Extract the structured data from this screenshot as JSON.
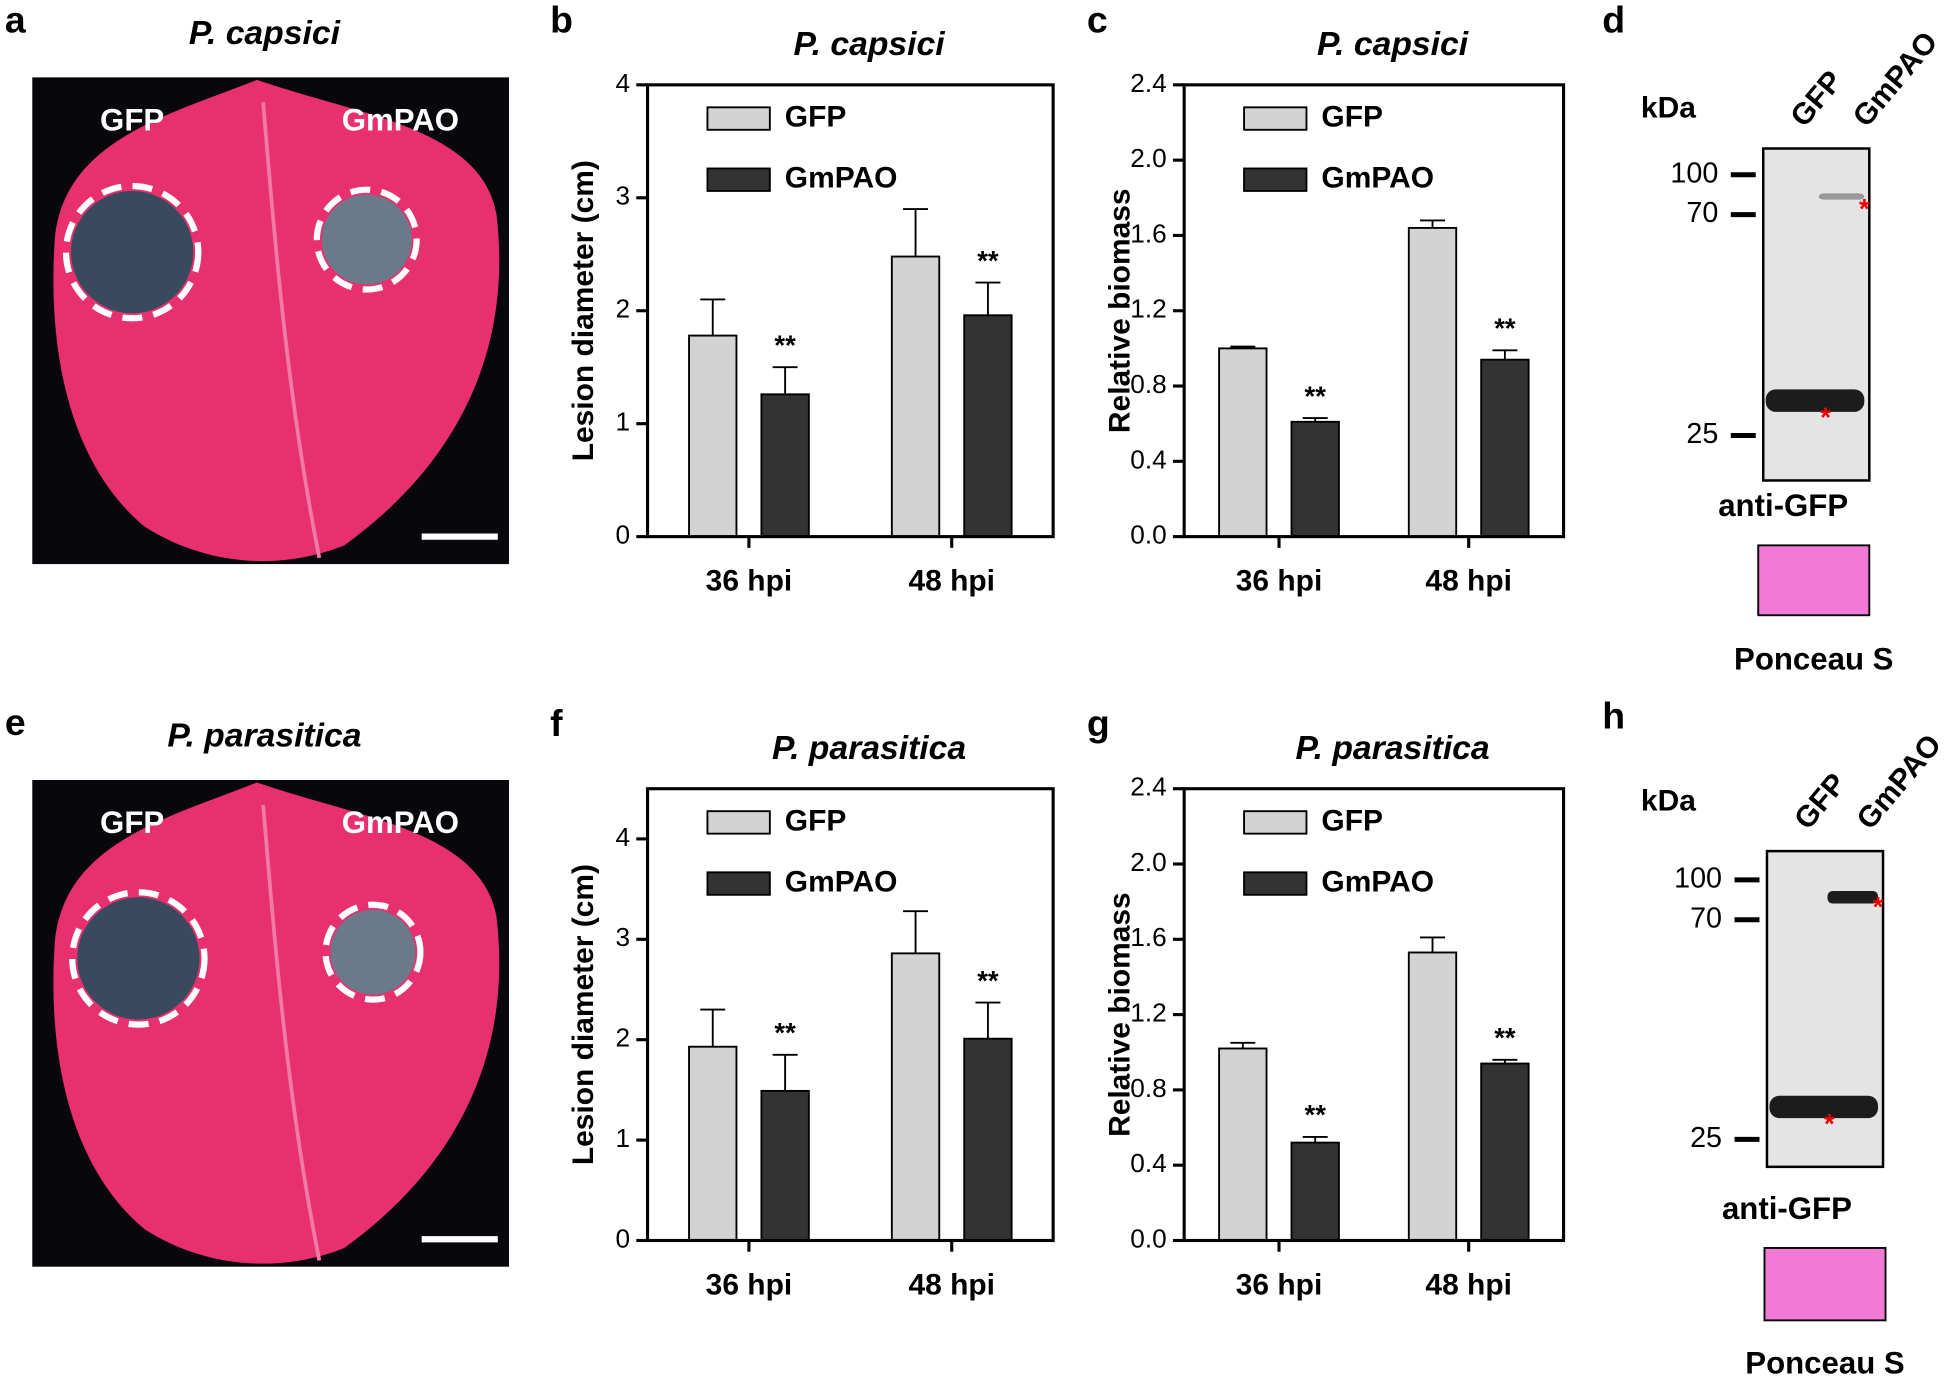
{
  "chart_data": [
    {
      "type": "bar",
      "label": "b",
      "title": "P. capsici",
      "ylabel": "Lesion diameter (cm)",
      "categories": [
        "36 hpi",
        "48 hpi"
      ],
      "series": [
        {
          "name": "GFP",
          "color": "#d3d3d3",
          "values": [
            1.78,
            2.48
          ],
          "errors": [
            0.32,
            0.42
          ]
        },
        {
          "name": "GmPAO",
          "color": "#333333",
          "values": [
            1.26,
            1.96
          ],
          "errors": [
            0.24,
            0.29
          ],
          "annotations": [
            "**",
            "**"
          ]
        }
      ],
      "ylim": [
        0,
        4
      ],
      "yticks": [
        0,
        1,
        2,
        3,
        4
      ]
    },
    {
      "type": "bar",
      "label": "c",
      "title": "P. capsici",
      "ylabel": "Relative biomass",
      "categories": [
        "36 hpi",
        "48 hpi"
      ],
      "series": [
        {
          "name": "GFP",
          "color": "#d3d3d3",
          "values": [
            1.0,
            1.64
          ],
          "errors": [
            0.01,
            0.04
          ]
        },
        {
          "name": "GmPAO",
          "color": "#333333",
          "values": [
            0.61,
            0.94
          ],
          "errors": [
            0.02,
            0.05
          ],
          "annotations": [
            "**",
            "**"
          ]
        }
      ],
      "ylim": [
        0,
        2.4
      ],
      "yticks": [
        {
          "value": 0,
          "label": "0.0"
        },
        0.4,
        0.8,
        1.2,
        1.6,
        {
          "value": 2,
          "label": "2.0"
        },
        2.4
      ]
    },
    {
      "type": "bar",
      "label": "f",
      "title": "P. parasitica",
      "ylabel": "Lesion diameter (cm)",
      "categories": [
        "36 hpi",
        "48 hpi"
      ],
      "series": [
        {
          "name": "GFP",
          "color": "#d3d3d3",
          "values": [
            1.93,
            2.86
          ],
          "errors": [
            0.37,
            0.42
          ]
        },
        {
          "name": "GmPAO",
          "color": "#333333",
          "values": [
            1.49,
            2.01
          ],
          "errors": [
            0.36,
            0.36
          ],
          "annotations": [
            "**",
            "**"
          ]
        }
      ],
      "ylim": [
        0,
        4.5
      ],
      "yticks": [
        0,
        1,
        2,
        3,
        4
      ]
    },
    {
      "type": "bar",
      "label": "g",
      "title": "P. parasitica",
      "ylabel": "Relative biomass",
      "categories": [
        "36 hpi",
        "48 hpi"
      ],
      "series": [
        {
          "name": "GFP",
          "color": "#d3d3d3",
          "values": [
            1.02,
            1.53
          ],
          "errors": [
            0.03,
            0.08
          ]
        },
        {
          "name": "GmPAO",
          "color": "#333333",
          "values": [
            0.52,
            0.94
          ],
          "errors": [
            0.03,
            0.02
          ],
          "annotations": [
            "**",
            "**"
          ]
        }
      ],
      "ylim": [
        0,
        2.4
      ],
      "yticks": [
        {
          "value": 0,
          "label": "0.0"
        },
        0.4,
        0.8,
        1.2,
        1.6,
        {
          "value": 2,
          "label": "2.0"
        },
        2.4
      ]
    }
  ],
  "photos": [
    {
      "label": "a",
      "title": "P. capsici",
      "spots": [
        "GFP",
        "GmPAO"
      ]
    },
    {
      "label": "e",
      "title": "P. parasitica",
      "spots": [
        "GFP",
        "GmPAO"
      ]
    }
  ],
  "blots": [
    {
      "label": "d",
      "unit": "kDa",
      "lanes": [
        "GFP",
        "GmPAO"
      ],
      "markers": [
        "100",
        "70",
        "25"
      ],
      "antibody": "anti-GFP",
      "stain": "Ponceau S"
    },
    {
      "label": "h",
      "unit": "kDa",
      "lanes": [
        "GFP",
        "GmPAO"
      ],
      "markers": [
        "100",
        "70",
        "25"
      ],
      "antibody": "anti-GFP",
      "stain": "Ponceau S"
    }
  ]
}
